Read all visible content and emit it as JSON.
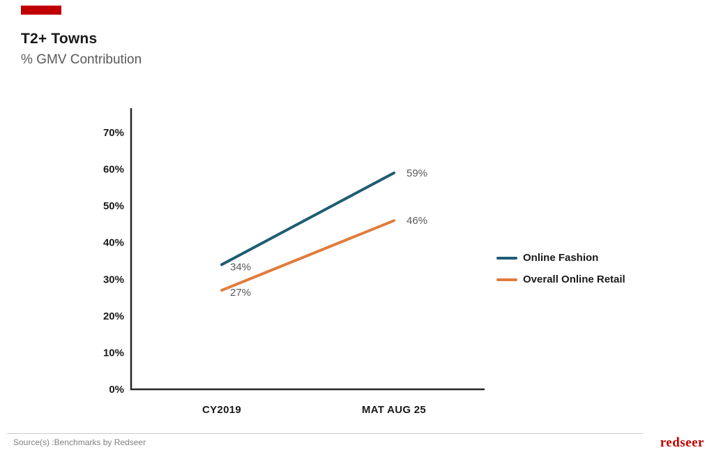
{
  "header": {
    "title": "T2+ Towns",
    "subtitle": "% GMV Contribution"
  },
  "chart_data": {
    "type": "line",
    "categories": [
      "CY2019",
      "MAT AUG 25"
    ],
    "series": [
      {
        "name": "Online Fashion",
        "color": "#1E5D73",
        "values": [
          34,
          59
        ]
      },
      {
        "name": "Overall Online Retail",
        "color": "#E07C3D",
        "values": [
          27,
          46
        ]
      }
    ],
    "unit": "%",
    "ylabel": "",
    "xlabel": "",
    "y_axis": {
      "ticks": [
        0,
        10,
        20,
        30,
        40,
        50,
        60,
        70
      ],
      "tick_suffix": "%",
      "ylim": [
        0,
        75
      ]
    },
    "grid": false,
    "data_labels": true,
    "legend_position": "right"
  },
  "footer": {
    "source": "Source(s) :Benchmarks by Redseer",
    "logo": "redseer"
  },
  "colors": {
    "accent": "#C00000",
    "axis": "#262626",
    "tick_label": "#1a1a1a",
    "data_label": "#595959",
    "logo": "#C00000"
  }
}
